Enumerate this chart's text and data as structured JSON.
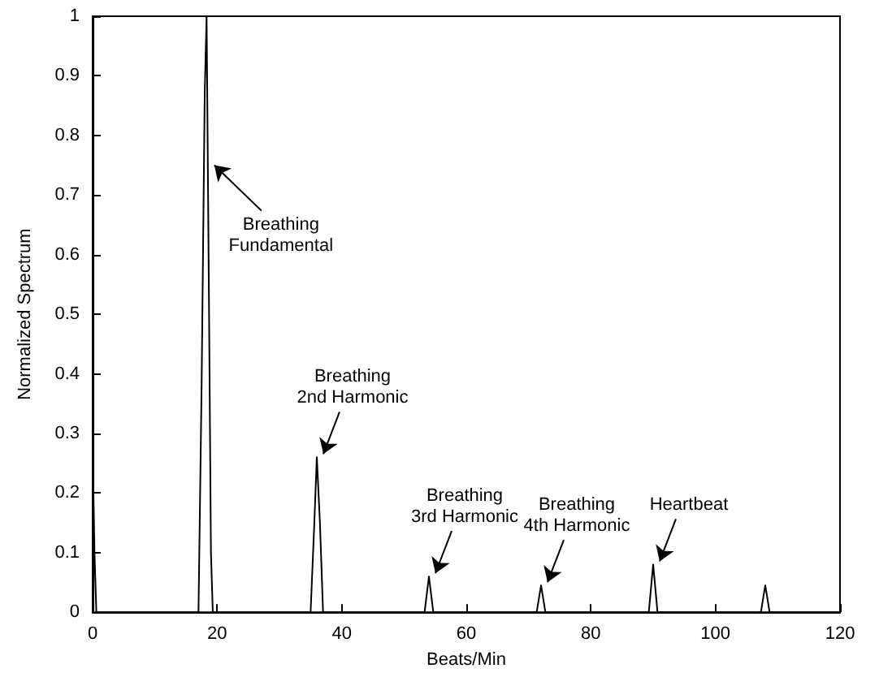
{
  "chart_data": {
    "type": "line",
    "xlabel": "Beats/Min",
    "ylabel": "Normalized Spectrum",
    "xlim": [
      0,
      120
    ],
    "xticks": [
      0,
      20,
      40,
      60,
      80,
      100,
      120
    ],
    "ylim": [
      0,
      1
    ],
    "yticks": [
      0,
      0.1,
      0.2,
      0.3,
      0.4,
      0.5,
      0.6,
      0.7,
      0.8,
      0.9,
      1
    ],
    "grid": false,
    "marker": "none",
    "line_style": "solid",
    "series": [
      {
        "color": "#000000",
        "x": [
          0,
          0.3,
          0.6,
          17,
          17.5,
          18,
          18.3,
          18.5,
          18.7,
          19,
          19.3,
          35,
          35.6,
          36,
          36.5,
          37,
          53.3,
          54,
          54.7,
          71.3,
          72,
          72.7,
          89.3,
          90,
          90.7,
          107.3,
          108,
          108.7,
          120
        ],
        "values": [
          0.28,
          0.1,
          0,
          0,
          0.38,
          0.87,
          1,
          0.75,
          0.5,
          0.1,
          0,
          0,
          0.15,
          0.26,
          0.15,
          0,
          0,
          0.06,
          0,
          0,
          0.045,
          0,
          0,
          0.08,
          0,
          0,
          0.045,
          0,
          0
        ]
      }
    ],
    "annotations": [
      {
        "text": "Breathing\nFundamental",
        "x": 18.5,
        "y": 0.75
      },
      {
        "text": "Breathing\n2nd Harmonic",
        "x": 36,
        "y": 0.26
      },
      {
        "text": "Breathing\n3rd Harmonic",
        "x": 54,
        "y": 0.06
      },
      {
        "text": "Breathing\n4th Harmonic",
        "x": 72,
        "y": 0.045
      },
      {
        "text": "Heartbeat",
        "x": 90,
        "y": 0.08
      }
    ]
  }
}
